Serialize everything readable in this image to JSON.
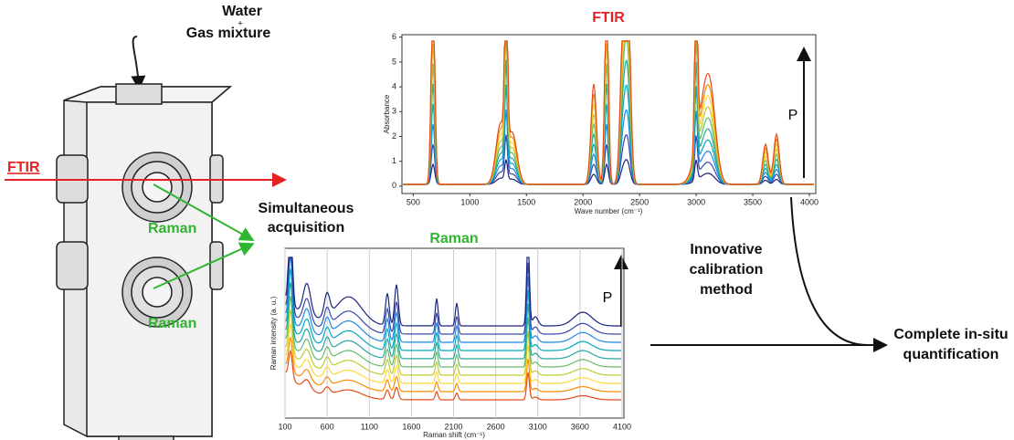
{
  "inlet": {
    "line1": "Water",
    "plus": "+",
    "line2": "Gas mixture"
  },
  "cell_labels": {
    "ftir": "FTIR",
    "raman_top": "Raman",
    "raman_bottom": "Raman"
  },
  "acquisition": [
    "Simultaneous",
    "acquisition"
  ],
  "ftir_plot": {
    "title": "FTIR",
    "x_label": "Wave number (cm⁻¹)",
    "y_label": "Absorbance",
    "xlim": [
      400,
      4000
    ],
    "xticks": [
      500,
      1000,
      1500,
      2000,
      2500,
      3000,
      3500,
      4000
    ],
    "ylim": [
      -0.3,
      6.1
    ],
    "yticks": [
      0,
      1,
      2,
      3,
      4,
      5,
      6
    ],
    "arrow_label": "P"
  },
  "raman_plot": {
    "title": "Raman",
    "x_label": "Raman shift (cm⁻¹)",
    "y_label": "Raman intensity (a. u.)",
    "xlim": [
      100,
      4100
    ],
    "xticks": [
      100,
      600,
      1100,
      1600,
      2100,
      2600,
      3100,
      3600,
      4100
    ],
    "arrow_label": "P"
  },
  "calibration": [
    "Innovative",
    "calibration",
    "method"
  ],
  "result": [
    "Complete in-situ",
    "quantification"
  ]
}
